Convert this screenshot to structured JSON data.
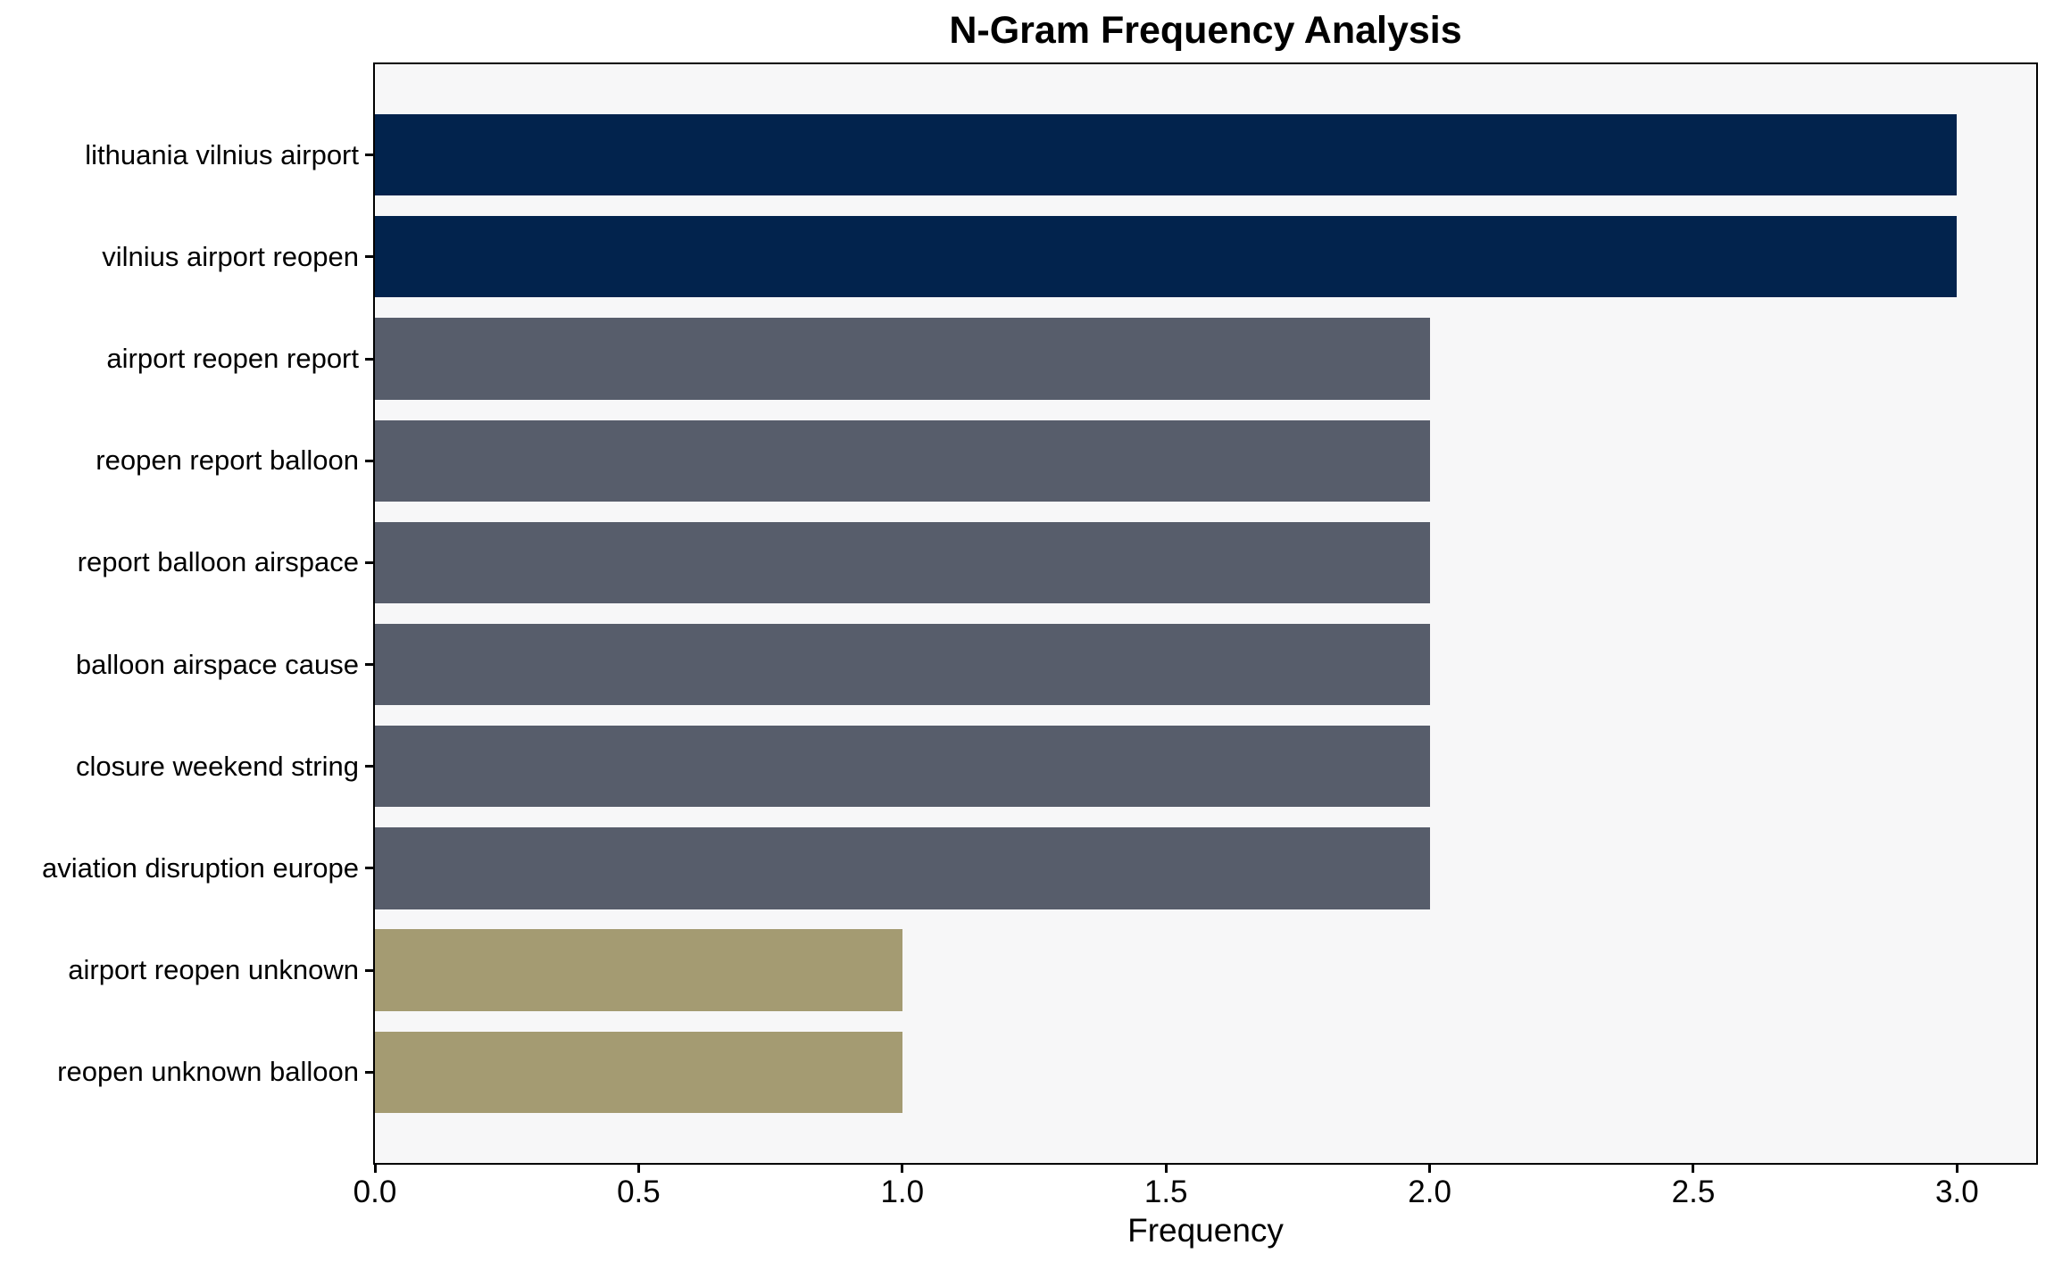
{
  "chart_data": {
    "type": "bar",
    "orientation": "horizontal",
    "title": "N-Gram Frequency Analysis",
    "xlabel": "Frequency",
    "ylabel": "",
    "categories": [
      "lithuania vilnius airport",
      "vilnius airport reopen",
      "airport reopen report",
      "reopen report balloon",
      "report balloon airspace",
      "balloon airspace cause",
      "closure weekend string",
      "aviation disruption europe",
      "airport reopen unknown",
      "reopen unknown balloon"
    ],
    "values": [
      3,
      3,
      2,
      2,
      2,
      2,
      2,
      2,
      1,
      1
    ],
    "bar_colors": [
      "#02234D",
      "#02234D",
      "#575D6B",
      "#575D6B",
      "#575D6B",
      "#575D6B",
      "#575D6B",
      "#575D6B",
      "#A49B72",
      "#A49B72"
    ],
    "xticks": [
      "0.0",
      "0.5",
      "1.0",
      "1.5",
      "2.0",
      "2.5",
      "3.0"
    ],
    "xlim": [
      0,
      3.15
    ],
    "grid": false,
    "legend_position": "none",
    "plot_background": "#F7F7F8",
    "figure_background": "#FFFFFF",
    "spine_color": "#000000",
    "text_color": "#000000"
  }
}
